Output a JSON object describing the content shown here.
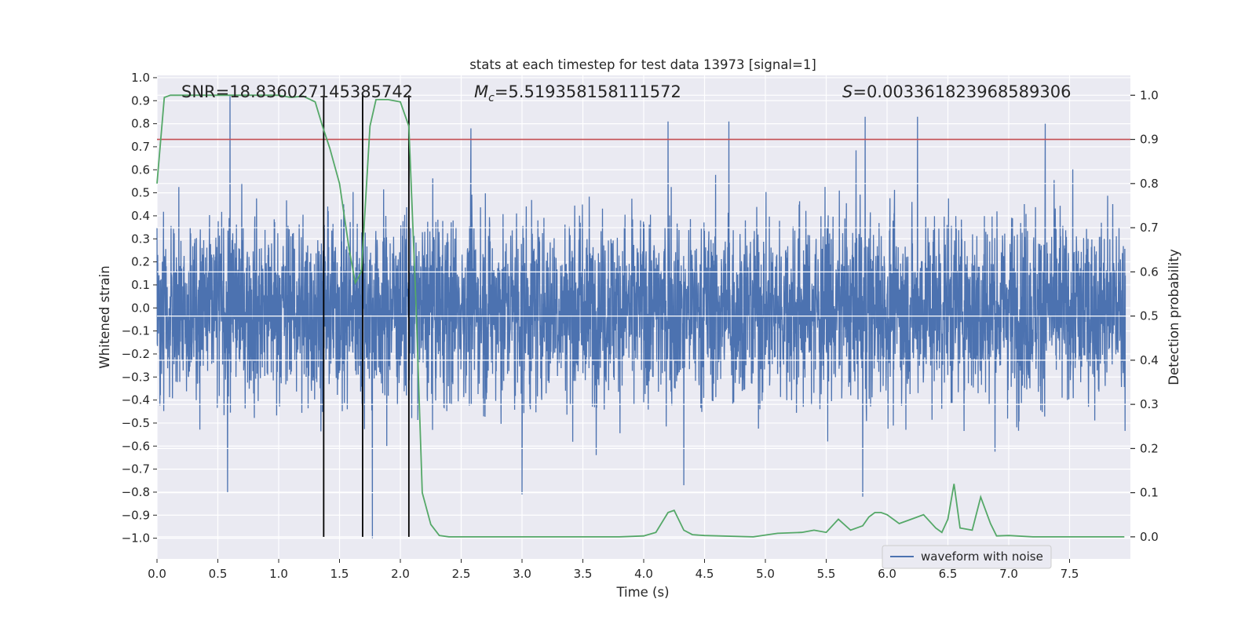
{
  "chart_data": {
    "type": "line",
    "title": "stats at each timestep for test data 13973 [signal=1]",
    "xlabel": "Time (s)",
    "ylabel_left": "Whitened strain",
    "ylabel_right": "Detection probability",
    "xlim": [
      0.0,
      8.0
    ],
    "ylim_left": [
      -1.09,
      1.01
    ],
    "ylim_right": [
      -0.05,
      1.045
    ],
    "xticks": [
      "0.0",
      "0.5",
      "1.0",
      "1.5",
      "2.0",
      "2.5",
      "3.0",
      "3.5",
      "4.0",
      "4.5",
      "5.0",
      "5.5",
      "6.0",
      "6.5",
      "7.0",
      "7.5"
    ],
    "yticks_left": [
      "1.0",
      "0.9",
      "0.8",
      "0.7",
      "0.6",
      "0.5",
      "0.4",
      "0.3",
      "0.2",
      "0.1",
      "0.0",
      "−0.1",
      "−0.2",
      "−0.3",
      "−0.4",
      "−0.5",
      "−0.6",
      "−0.7",
      "−0.8",
      "−0.9",
      "−1.0"
    ],
    "yticks_right": [
      "1.0",
      "0.9",
      "0.8",
      "0.7",
      "0.6",
      "0.5",
      "0.4",
      "0.3",
      "0.2",
      "0.1",
      "0.0"
    ],
    "annotations": {
      "snr": "SNR=18.836027145385742",
      "mc_symbol": "M",
      "mc_subscript": "c",
      "mc_value": "=5.519358158111572",
      "s_symbol": "S",
      "s_value": "=0.0033618239685893​06"
    },
    "threshold": {
      "value": 0.9,
      "axis": "right",
      "color": "#c44e52"
    },
    "vertical_markers_s": [
      1.37,
      1.69,
      2.07
    ],
    "series": [
      {
        "name": "waveform with noise",
        "axis": "left",
        "color": "#4c72b0",
        "description": "noisy whitened strain",
        "peak_points": [
          [
            0.6,
            0.92
          ],
          [
            2.58,
            0.78
          ],
          [
            4.2,
            0.81
          ],
          [
            4.7,
            0.81
          ],
          [
            5.82,
            0.83
          ],
          [
            6.25,
            0.83
          ],
          [
            7.3,
            0.8
          ],
          [
            0.58,
            -0.8
          ],
          [
            1.77,
            -1.0
          ],
          [
            3.0,
            -0.81
          ],
          [
            5.8,
            -0.82
          ],
          [
            4.33,
            -0.77
          ]
        ]
      },
      {
        "name": "detection probability",
        "axis": "right",
        "color": "#55a868",
        "x": [
          0.0,
          0.06,
          0.11,
          0.2,
          0.4,
          0.6,
          0.8,
          1.0,
          1.1,
          1.2,
          1.3,
          1.36,
          1.42,
          1.5,
          1.58,
          1.63,
          1.68,
          1.75,
          1.8,
          1.9,
          2.0,
          2.07,
          2.13,
          2.18,
          2.25,
          2.32,
          2.4,
          2.6,
          3.0,
          3.5,
          3.8,
          4.0,
          4.1,
          4.2,
          4.25,
          4.33,
          4.4,
          4.5,
          4.9,
          5.1,
          5.3,
          5.4,
          5.5,
          5.6,
          5.7,
          5.8,
          5.85,
          5.9,
          5.95,
          6.0,
          6.1,
          6.2,
          6.3,
          6.4,
          6.45,
          6.5,
          6.55,
          6.6,
          6.7,
          6.77,
          6.85,
          6.9,
          7.0,
          7.2,
          7.6,
          7.95
        ],
        "y": [
          0.8,
          0.995,
          1.0,
          1.0,
          1.0,
          1.0,
          1.0,
          1.0,
          0.995,
          0.998,
          0.985,
          0.93,
          0.88,
          0.8,
          0.65,
          0.575,
          0.6,
          0.93,
          0.99,
          0.99,
          0.985,
          0.93,
          0.52,
          0.1,
          0.028,
          0.003,
          0.0,
          0.0,
          0.0,
          0.0,
          0.0,
          0.002,
          0.01,
          0.055,
          0.06,
          0.015,
          0.005,
          0.003,
          0.0,
          0.008,
          0.01,
          0.015,
          0.01,
          0.04,
          0.015,
          0.025,
          0.045,
          0.055,
          0.055,
          0.05,
          0.03,
          0.04,
          0.05,
          0.02,
          0.01,
          0.04,
          0.12,
          0.02,
          0.015,
          0.09,
          0.03,
          0.002,
          0.003,
          0.0,
          0.0,
          0.0
        ]
      }
    ],
    "legend": {
      "position": "lower-right",
      "entries": [
        "waveform with noise"
      ]
    }
  },
  "colors": {
    "plot_bg": "#eaeaf2",
    "grid": "#ffffff",
    "noise": "#4c72b0",
    "prob": "#55a868",
    "threshold": "#c44e52",
    "marker": "#000000"
  }
}
